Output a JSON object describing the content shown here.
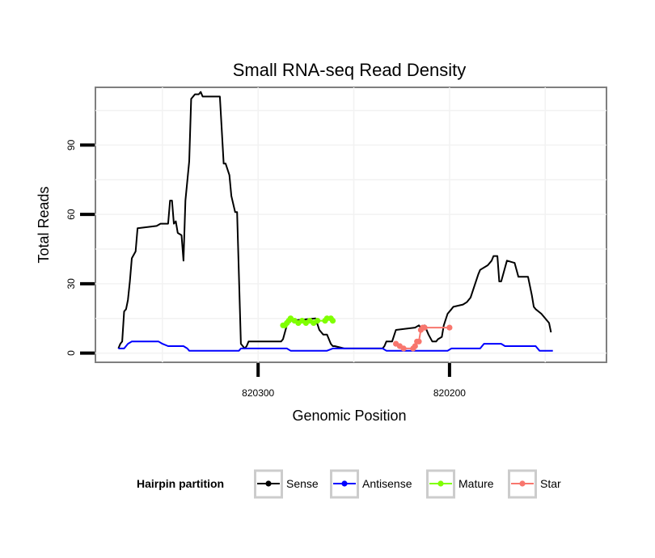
{
  "chart_data": {
    "type": "line",
    "title": "Small RNA-seq Read Density",
    "xlabel": "Genomic Position",
    "ylabel": "Total Reads",
    "x_reversed": true,
    "xlim": [
      820385,
      820118
    ],
    "ylim": [
      -4,
      115
    ],
    "x_ticks": [
      820300,
      820200
    ],
    "x_tick_labels": [
      "820300",
      "820200"
    ],
    "y_ticks": [
      0,
      30,
      60,
      90
    ],
    "y_tick_labels": [
      "0",
      "30",
      "60",
      "90"
    ],
    "grid": true,
    "legend": {
      "title": "Hairpin partition",
      "position": "bottom",
      "items": [
        {
          "label": "Sense",
          "color": "#000000"
        },
        {
          "label": "Antisense",
          "color": "#0000ff"
        },
        {
          "label": "Mature",
          "color": "#7fff00"
        },
        {
          "label": "Star",
          "color": "#f8766d"
        }
      ]
    },
    "series": [
      {
        "name": "Sense",
        "color": "#000000",
        "points": [
          [
            820373,
            2
          ],
          [
            820372,
            4
          ],
          [
            820371,
            5
          ],
          [
            820370,
            18
          ],
          [
            820369,
            19
          ],
          [
            820368,
            23
          ],
          [
            820367,
            31
          ],
          [
            820366,
            41
          ],
          [
            820364,
            44
          ],
          [
            820363,
            54
          ],
          [
            820353,
            55
          ],
          [
            820351,
            56
          ],
          [
            820347,
            56
          ],
          [
            820346,
            66
          ],
          [
            820345,
            66
          ],
          [
            820344,
            56
          ],
          [
            820343,
            57
          ],
          [
            820342,
            52
          ],
          [
            820340,
            51
          ],
          [
            820339,
            40
          ],
          [
            820338,
            66
          ],
          [
            820336,
            83
          ],
          [
            820335,
            110
          ],
          [
            820333,
            112
          ],
          [
            820331,
            112
          ],
          [
            820330,
            113
          ],
          [
            820329,
            111
          ],
          [
            820320,
            111
          ],
          [
            820318,
            82
          ],
          [
            820317,
            82
          ],
          [
            820315,
            77
          ],
          [
            820314,
            68
          ],
          [
            820312,
            61
          ],
          [
            820311,
            61
          ],
          [
            820309,
            4
          ],
          [
            820307,
            2
          ],
          [
            820306,
            3
          ],
          [
            820305,
            5
          ],
          [
            820288,
            5
          ],
          [
            820287,
            6
          ],
          [
            820285,
            12
          ],
          [
            820284,
            14
          ],
          [
            820283,
            14
          ],
          [
            820270,
            15
          ],
          [
            820268,
            10
          ],
          [
            820266,
            8
          ],
          [
            820264,
            8
          ],
          [
            820262,
            4
          ],
          [
            820261,
            3
          ],
          [
            820260,
            3
          ],
          [
            820255,
            2
          ],
          [
            820235,
            2
          ],
          [
            820234,
            3
          ],
          [
            820233,
            5
          ],
          [
            820230,
            5
          ],
          [
            820228,
            10
          ],
          [
            820218,
            11
          ],
          [
            820216,
            12
          ],
          [
            820215,
            11
          ],
          [
            820213,
            12
          ],
          [
            820211,
            8
          ],
          [
            820209,
            5
          ],
          [
            820207,
            5
          ],
          [
            820206,
            6
          ],
          [
            820204,
            7
          ],
          [
            820203,
            12
          ],
          [
            820201,
            17
          ],
          [
            820199,
            19
          ],
          [
            820198,
            20
          ],
          [
            820193,
            21
          ],
          [
            820191,
            22
          ],
          [
            820189,
            24
          ],
          [
            820185,
            34
          ],
          [
            820184,
            36
          ],
          [
            820180,
            38
          ],
          [
            820178,
            40
          ],
          [
            820177,
            42
          ],
          [
            820175,
            42
          ],
          [
            820174,
            31
          ],
          [
            820173,
            31
          ],
          [
            820172,
            34
          ],
          [
            820170,
            40
          ],
          [
            820166,
            39
          ],
          [
            820164,
            33
          ],
          [
            820159,
            33
          ],
          [
            820157,
            25
          ],
          [
            820156,
            20
          ],
          [
            820155,
            19
          ],
          [
            820152,
            17
          ],
          [
            820148,
            13
          ],
          [
            820147,
            9
          ]
        ]
      },
      {
        "name": "Antisense",
        "color": "#0000ff",
        "points": [
          [
            820373,
            2
          ],
          [
            820370,
            2
          ],
          [
            820368,
            4
          ],
          [
            820366,
            5
          ],
          [
            820352,
            5
          ],
          [
            820350,
            4
          ],
          [
            820347,
            3
          ],
          [
            820339,
            3
          ],
          [
            820337,
            2
          ],
          [
            820336,
            1
          ],
          [
            820310,
            1
          ],
          [
            820309,
            2
          ],
          [
            820285,
            2
          ],
          [
            820283,
            1
          ],
          [
            820264,
            1
          ],
          [
            820261,
            2
          ],
          [
            820235,
            2
          ],
          [
            820233,
            1
          ],
          [
            820201,
            1
          ],
          [
            820199,
            2
          ],
          [
            820184,
            2
          ],
          [
            820182,
            4
          ],
          [
            820173,
            4
          ],
          [
            820171,
            3
          ],
          [
            820155,
            3
          ],
          [
            820153,
            1
          ],
          [
            820146,
            1
          ]
        ]
      },
      {
        "name": "Mature",
        "color": "#7fff00",
        "points": [
          [
            820287,
            12
          ],
          [
            820286,
            12
          ],
          [
            820285,
            13
          ],
          [
            820284,
            14
          ],
          [
            820283,
            15
          ],
          [
            820281,
            14
          ],
          [
            820279,
            13
          ],
          [
            820277,
            14
          ],
          [
            820275,
            13
          ],
          [
            820273,
            14
          ],
          [
            820271,
            13
          ],
          [
            820269,
            14
          ],
          [
            820265,
            14
          ],
          [
            820264,
            15
          ],
          [
            820262,
            15
          ],
          [
            820261,
            14
          ]
        ]
      },
      {
        "name": "Star",
        "color": "#f8766d",
        "points": [
          [
            820228,
            4
          ],
          [
            820226,
            3
          ],
          [
            820224,
            2
          ],
          [
            820219,
            2
          ],
          [
            820218,
            3
          ],
          [
            820217,
            5
          ],
          [
            820216,
            5
          ],
          [
            820215,
            10
          ],
          [
            820214,
            11
          ],
          [
            820213,
            11
          ],
          [
            820200,
            11
          ]
        ]
      }
    ]
  }
}
